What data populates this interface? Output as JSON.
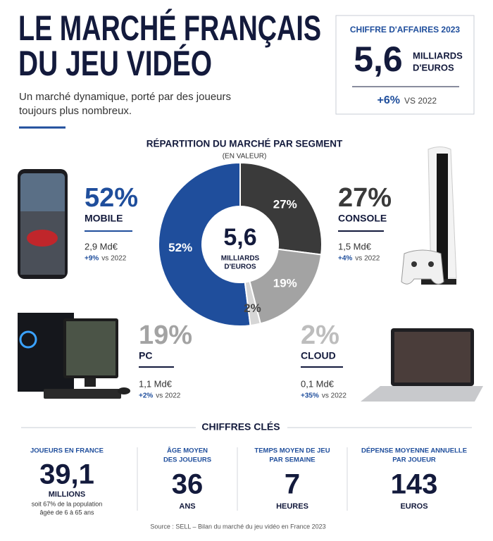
{
  "header": {
    "title_lines": [
      "LE MARCHÉ FRANÇAIS",
      "DU JEU VIDÉO"
    ],
    "subtitle_lines": [
      "Un marché dynamique, porté par des joueurs",
      "toujours plus nombreux."
    ]
  },
  "revenue": {
    "heading": "CHIFFRE D'AFFAIRES 2023",
    "value": "5,6",
    "unit_lines": [
      "MILLIARDS",
      "D'EUROS"
    ],
    "growth": "+6%",
    "comparison": "VS 2022"
  },
  "chart_data": {
    "type": "donut",
    "title": "RÉPARTITION DU MARCHÉ PAR SEGMENT",
    "subtitle": "(EN VALEUR)",
    "center_value": "5,6",
    "center_unit_lines": [
      "MILLIARDS",
      "D'EUROS"
    ],
    "categories": [
      "MOBILE",
      "CONSOLE",
      "PC",
      "CLOUD"
    ],
    "values": [
      52,
      27,
      19,
      2
    ],
    "value_labels": [
      "52%",
      "27%",
      "19%",
      "2%"
    ],
    "colors": [
      "#1f4e9c",
      "#3a3a3a",
      "#a3a3a3",
      "#d6d6d6"
    ]
  },
  "segments": [
    {
      "revenue": "2,9 Md€",
      "growth": "+9%",
      "comparison": "vs 2022"
    },
    {
      "revenue": "1,5 Md€",
      "growth": "+4%",
      "comparison": "vs 2022"
    },
    {
      "revenue": "1,1 Md€",
      "growth": "+2%",
      "comparison": "vs 2022"
    },
    {
      "revenue": "0,1 Md€",
      "growth": "+35%",
      "comparison": "vs 2022"
    }
  ],
  "key_figures": {
    "title": "CHIFFRES CLÉS",
    "items": [
      {
        "label_lines": [
          "JOUEURS EN FRANCE"
        ],
        "value": "39,1",
        "unit": "MILLIONS",
        "note_lines": [
          "soit 67% de la population",
          "âgée de 6 à 65 ans"
        ]
      },
      {
        "label_lines": [
          "ÂGE MOYEN",
          "DES JOUEURS"
        ],
        "value": "36",
        "unit": "ANS",
        "note_lines": []
      },
      {
        "label_lines": [
          "TEMPS MOYEN DE JEU",
          "PAR SEMAINE"
        ],
        "value": "7",
        "unit": "HEURES",
        "note_lines": []
      },
      {
        "label_lines": [
          "DÉPENSE MOYENNE ANNUELLE",
          "PAR JOUEUR"
        ],
        "value": "143",
        "unit": "EUROS",
        "note_lines": []
      }
    ]
  },
  "source": "Source : SELL – Bilan du marché du jeu vidéo en France 2023"
}
